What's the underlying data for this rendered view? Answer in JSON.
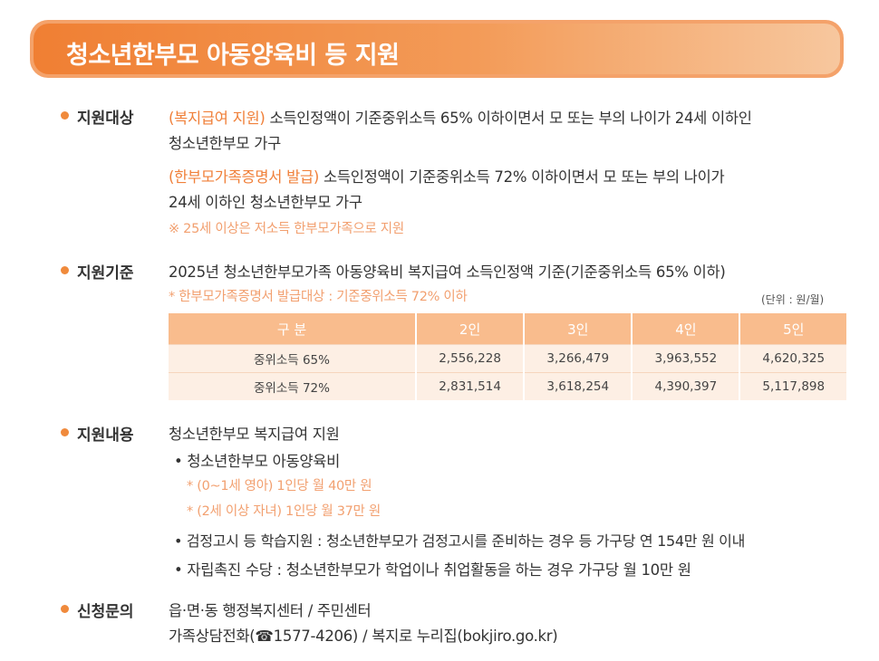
{
  "title": "청소년한부모 아동양육비 등 지원",
  "sections": {
    "target": {
      "label": "지원대상",
      "line1_tag": "(복지급여 지원)",
      "line1_text": " 소득인정액이 기준중위소득 65% 이하이면서 모 또는 부의 나이가 24세 이하인",
      "line1_cont": "청소년한부모 가구",
      "line2_tag": "(한부모가족증명서 발급)",
      "line2_text": " 소득인정액이 기준중위소득 72% 이하이면서 모 또는 부의 나이가",
      "line2_cont": "24세 이하인 청소년한부모 가구",
      "note": "※ 25세 이상은 저소득 한부모가족으로 지원"
    },
    "criteria": {
      "label": "지원기준",
      "heading": "2025년 청소년한부모가족 아동양육비 복지급여 소득인정액 기준(기준중위소득 65% 이하)",
      "note": "* 한부모가족증명서 발급대상 : 기준중위소득 72% 이하",
      "unit": "(단위 : 원/월)",
      "table": {
        "headers": [
          "구  분",
          "2인",
          "3인",
          "4인",
          "5인"
        ],
        "rows": [
          [
            "중위소득 65%",
            "2,556,228",
            "3,266,479",
            "3,963,552",
            "4,620,325"
          ],
          [
            "중위소득 72%",
            "2,831,514",
            "3,618,254",
            "4,390,397",
            "5,117,898"
          ]
        ]
      }
    },
    "content": {
      "label": "지원내용",
      "heading": "청소년한부모 복지급여 지원",
      "item1": "• 청소년한부모 아동양육비",
      "item1_sub1": "* (0~1세 영아) 1인당 월 40만 원",
      "item1_sub2": "* (2세 이상 자녀) 1인당 월 37만 원",
      "item2": "• 검정고시 등 학습지원 : 청소년한부모가 검정고시를 준비하는 경우 등 가구당 연 154만 원 이내",
      "item3": "• 자립촉진 수당 : 청소년한부모가 학업이나 취업활동을 하는 경우 가구당 월 10만 원"
    },
    "inquiry": {
      "label": "신청문의",
      "line1": "읍·면·동 행정복지센터 / 주민센터",
      "line2": "가족상담전화(☎1577-4206) / 복지로 누리집(bokjiro.go.kr)"
    }
  }
}
